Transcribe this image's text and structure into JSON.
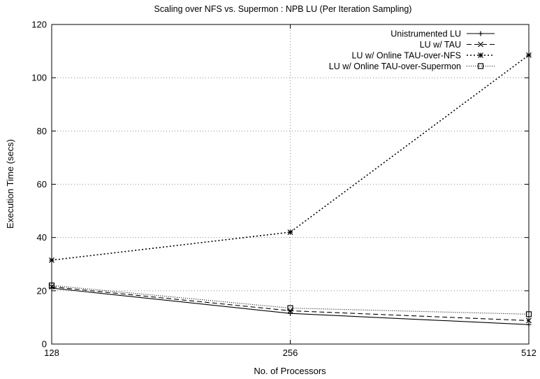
{
  "chart_data": {
    "type": "line",
    "title": "Scaling over NFS vs. Supermon : NPB LU (Per Iteration Sampling)",
    "xlabel": "No. of Processors",
    "ylabel": "Execution Time (secs)",
    "x": [
      "128",
      "256",
      "512"
    ],
    "ylim": [
      0,
      120
    ],
    "yticks": [
      "0",
      "20",
      "40",
      "60",
      "80",
      "100",
      "120"
    ],
    "grid": true,
    "legend_position": "top-right",
    "series": [
      {
        "name": "Unistrumented LU",
        "values": [
          21,
          11.5,
          7.3
        ],
        "marker": "plus",
        "dash": ""
      },
      {
        "name": "LU w/ TAU",
        "values": [
          21.5,
          12.5,
          8.8
        ],
        "marker": "cross",
        "dash": "7,4"
      },
      {
        "name": "LU w/ Online TAU-over-NFS",
        "values": [
          31.5,
          42,
          108.5
        ],
        "marker": "star",
        "dash": "2,3"
      },
      {
        "name": "LU w/ Online TAU-over-Supermon",
        "values": [
          22,
          13.5,
          11.2
        ],
        "marker": "square",
        "dash": "1,2"
      }
    ]
  }
}
